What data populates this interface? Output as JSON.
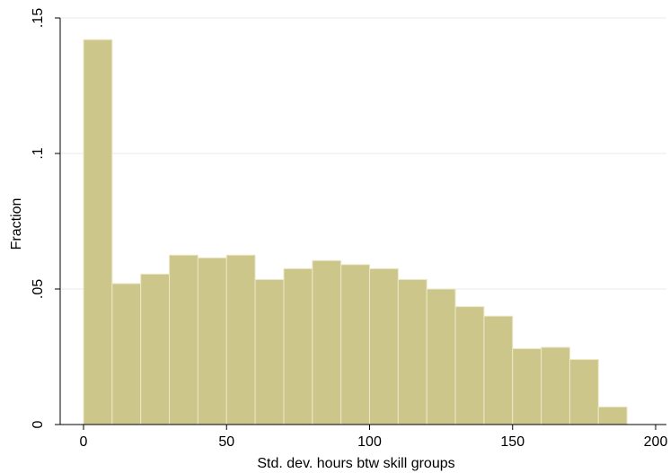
{
  "chart_data": {
    "type": "bar",
    "subtype": "histogram",
    "xlabel": "Std. dev. hours btw skill groups",
    "ylabel": "Fraction",
    "xlim": [
      0,
      200
    ],
    "ylim": [
      0,
      0.15
    ],
    "x_ticks": [
      {
        "value": 0,
        "label": "0"
      },
      {
        "value": 50,
        "label": "50"
      },
      {
        "value": 100,
        "label": "100"
      },
      {
        "value": 150,
        "label": "150"
      },
      {
        "value": 200,
        "label": "200"
      }
    ],
    "y_ticks": [
      {
        "value": 0,
        "label": "0"
      },
      {
        "value": 0.05,
        "label": ".05"
      },
      {
        "value": 0.1,
        "label": ".1"
      },
      {
        "value": 0.15,
        "label": ".15"
      }
    ],
    "bin_width": 10,
    "bins": [
      {
        "start": 0,
        "end": 10,
        "value": 0.142
      },
      {
        "start": 10,
        "end": 20,
        "value": 0.052
      },
      {
        "start": 20,
        "end": 30,
        "value": 0.0555
      },
      {
        "start": 30,
        "end": 40,
        "value": 0.0625
      },
      {
        "start": 40,
        "end": 50,
        "value": 0.0615
      },
      {
        "start": 50,
        "end": 60,
        "value": 0.0625
      },
      {
        "start": 60,
        "end": 70,
        "value": 0.0535
      },
      {
        "start": 70,
        "end": 80,
        "value": 0.0575
      },
      {
        "start": 80,
        "end": 90,
        "value": 0.0605
      },
      {
        "start": 90,
        "end": 100,
        "value": 0.059
      },
      {
        "start": 100,
        "end": 110,
        "value": 0.0575
      },
      {
        "start": 110,
        "end": 120,
        "value": 0.0535
      },
      {
        "start": 120,
        "end": 130,
        "value": 0.05
      },
      {
        "start": 130,
        "end": 140,
        "value": 0.0435
      },
      {
        "start": 140,
        "end": 150,
        "value": 0.04
      },
      {
        "start": 150,
        "end": 160,
        "value": 0.028
      },
      {
        "start": 160,
        "end": 170,
        "value": 0.0285
      },
      {
        "start": 170,
        "end": 180,
        "value": 0.024
      },
      {
        "start": 180,
        "end": 190,
        "value": 0.0065
      }
    ],
    "bar_color": "#cdc68a",
    "bar_edge_color": "#ece8c8",
    "grid": true,
    "grid_color": "#eaeaea",
    "legend": "none"
  }
}
